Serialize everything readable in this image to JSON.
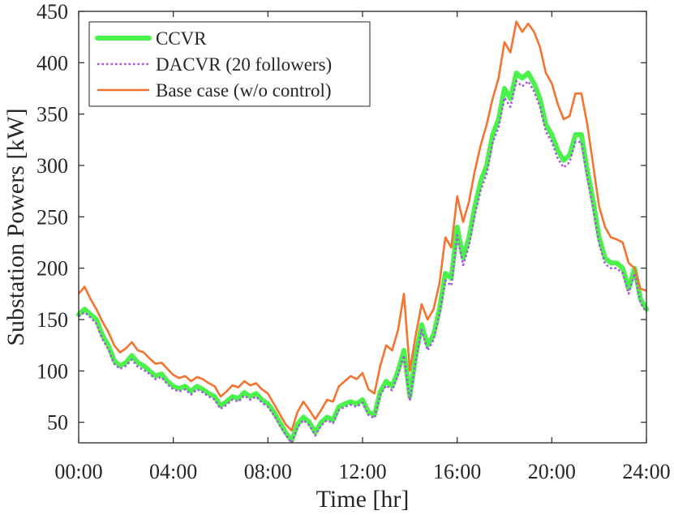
{
  "chart_data": {
    "type": "line",
    "title": "",
    "xlabel": "Time [hr]",
    "ylabel": "Substation Powers [kW]",
    "xlim": [
      0,
      24
    ],
    "ylim": [
      30,
      450
    ],
    "xticks": [
      0,
      4,
      8,
      12,
      16,
      20,
      24
    ],
    "xtick_labels": [
      "00:00",
      "04:00",
      "08:00",
      "12:00",
      "16:00",
      "20:00",
      "24:00"
    ],
    "yticks": [
      50,
      100,
      150,
      200,
      250,
      300,
      350,
      400,
      450
    ],
    "ytick_labels": [
      "50",
      "100",
      "150",
      "200",
      "250",
      "300",
      "350",
      "400",
      "450"
    ],
    "grid": false,
    "legend_position": "top-left",
    "x": [
      0,
      0.25,
      0.5,
      0.75,
      1,
      1.25,
      1.5,
      1.75,
      2,
      2.25,
      2.5,
      2.75,
      3,
      3.25,
      3.5,
      3.75,
      4,
      4.25,
      4.5,
      4.75,
      5,
      5.25,
      5.5,
      5.75,
      6,
      6.25,
      6.5,
      6.75,
      7,
      7.25,
      7.5,
      7.75,
      8,
      8.25,
      8.5,
      8.75,
      9,
      9.25,
      9.5,
      9.75,
      10,
      10.25,
      10.5,
      10.75,
      11,
      11.25,
      11.5,
      11.75,
      12,
      12.25,
      12.5,
      12.75,
      13,
      13.25,
      13.5,
      13.75,
      14,
      14.25,
      14.5,
      14.75,
      15,
      15.25,
      15.5,
      15.75,
      16,
      16.25,
      16.5,
      16.75,
      17,
      17.25,
      17.5,
      17.75,
      18,
      18.25,
      18.5,
      18.75,
      19,
      19.25,
      19.5,
      19.75,
      20,
      20.25,
      20.5,
      20.75,
      21,
      21.25,
      21.5,
      21.75,
      22,
      22.25,
      22.5,
      22.75,
      23,
      23.25,
      23.5,
      23.75,
      24
    ],
    "series": [
      {
        "name": "CCVR",
        "color": "#4cf24c",
        "style": "solid-thick",
        "values": [
          155,
          160,
          155,
          150,
          135,
          125,
          110,
          105,
          108,
          115,
          108,
          105,
          100,
          95,
          97,
          90,
          85,
          83,
          85,
          80,
          85,
          82,
          78,
          75,
          66,
          70,
          75,
          73,
          79,
          75,
          78,
          72,
          68,
          60,
          50,
          40,
          32,
          48,
          55,
          50,
          40,
          50,
          55,
          52,
          65,
          68,
          70,
          68,
          72,
          60,
          57,
          80,
          90,
          85,
          100,
          120,
          75,
          115,
          145,
          125,
          135,
          160,
          195,
          190,
          240,
          210,
          230,
          260,
          285,
          300,
          330,
          345,
          375,
          365,
          390,
          385,
          390,
          380,
          365,
          340,
          330,
          315,
          305,
          310,
          330,
          330,
          295,
          265,
          230,
          210,
          205,
          205,
          200,
          180,
          200,
          170,
          160
        ]
      },
      {
        "name": "DACVR (20 followers)",
        "color": "#a852e6",
        "style": "dotted",
        "values": [
          153,
          157,
          152,
          146,
          131,
          121,
          107,
          102,
          105,
          111,
          104,
          101,
          97,
          92,
          94,
          87,
          82,
          80,
          82,
          77,
          82,
          79,
          75,
          72,
          63,
          67,
          72,
          70,
          76,
          72,
          75,
          69,
          65,
          57,
          47,
          38,
          30,
          45,
          52,
          47,
          37,
          47,
          52,
          49,
          62,
          65,
          67,
          65,
          69,
          57,
          54,
          77,
          86,
          81,
          96,
          115,
          71,
          110,
          140,
          120,
          130,
          155,
          188,
          183,
          232,
          203,
          222,
          252,
          276,
          292,
          322,
          337,
          366,
          357,
          382,
          377,
          382,
          372,
          357,
          333,
          323,
          307,
          298,
          303,
          323,
          323,
          288,
          258,
          224,
          204,
          200,
          200,
          195,
          175,
          195,
          166,
          157
        ]
      },
      {
        "name": "Base case (w/o control)",
        "color": "#f47330",
        "style": "solid",
        "values": [
          175,
          182,
          170,
          160,
          148,
          138,
          125,
          118,
          122,
          128,
          120,
          118,
          112,
          107,
          108,
          102,
          96,
          93,
          95,
          90,
          94,
          92,
          88,
          85,
          75,
          80,
          86,
          84,
          90,
          86,
          88,
          82,
          78,
          68,
          58,
          48,
          42,
          60,
          70,
          62,
          53,
          62,
          72,
          70,
          85,
          90,
          95,
          92,
          98,
          82,
          78,
          105,
          125,
          120,
          140,
          175,
          100,
          135,
          165,
          150,
          160,
          185,
          230,
          220,
          270,
          245,
          265,
          295,
          320,
          340,
          365,
          385,
          420,
          410,
          440,
          430,
          438,
          430,
          415,
          390,
          380,
          360,
          345,
          348,
          370,
          370,
          340,
          300,
          260,
          240,
          230,
          228,
          225,
          205,
          200,
          180,
          178
        ]
      }
    ]
  }
}
